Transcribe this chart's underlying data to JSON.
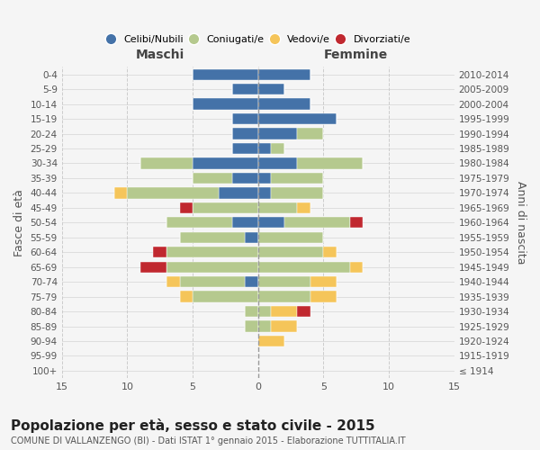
{
  "age_groups": [
    "100+",
    "95-99",
    "90-94",
    "85-89",
    "80-84",
    "75-79",
    "70-74",
    "65-69",
    "60-64",
    "55-59",
    "50-54",
    "45-49",
    "40-44",
    "35-39",
    "30-34",
    "25-29",
    "20-24",
    "15-19",
    "10-14",
    "5-9",
    "0-4"
  ],
  "birth_years": [
    "≤ 1914",
    "1915-1919",
    "1920-1924",
    "1925-1929",
    "1930-1934",
    "1935-1939",
    "1940-1944",
    "1945-1949",
    "1950-1954",
    "1955-1959",
    "1960-1964",
    "1965-1969",
    "1970-1974",
    "1975-1979",
    "1980-1984",
    "1985-1989",
    "1990-1994",
    "1995-1999",
    "2000-2004",
    "2005-2009",
    "2010-2014"
  ],
  "males": {
    "celibi": [
      0,
      0,
      0,
      0,
      0,
      0,
      1,
      0,
      0,
      1,
      2,
      0,
      3,
      2,
      5,
      2,
      2,
      2,
      5,
      2,
      5
    ],
    "coniugati": [
      0,
      0,
      0,
      1,
      1,
      5,
      5,
      7,
      7,
      5,
      5,
      5,
      7,
      3,
      4,
      0,
      0,
      0,
      0,
      0,
      0
    ],
    "vedovi": [
      0,
      0,
      0,
      0,
      0,
      1,
      1,
      0,
      0,
      0,
      0,
      0,
      1,
      0,
      0,
      0,
      0,
      0,
      0,
      0,
      0
    ],
    "divorziati": [
      0,
      0,
      0,
      0,
      0,
      0,
      0,
      2,
      1,
      0,
      0,
      1,
      0,
      0,
      0,
      0,
      0,
      0,
      0,
      0,
      0
    ]
  },
  "females": {
    "nubili": [
      0,
      0,
      0,
      0,
      0,
      0,
      0,
      0,
      0,
      0,
      2,
      0,
      1,
      1,
      3,
      1,
      3,
      6,
      4,
      2,
      4
    ],
    "coniugate": [
      0,
      0,
      0,
      1,
      1,
      4,
      4,
      7,
      5,
      5,
      5,
      3,
      4,
      4,
      5,
      1,
      2,
      0,
      0,
      0,
      0
    ],
    "vedove": [
      0,
      0,
      2,
      2,
      2,
      2,
      2,
      1,
      1,
      0,
      0,
      1,
      0,
      0,
      0,
      0,
      0,
      0,
      0,
      0,
      0
    ],
    "divorziate": [
      0,
      0,
      0,
      0,
      1,
      0,
      0,
      0,
      0,
      0,
      1,
      0,
      0,
      0,
      0,
      0,
      0,
      0,
      0,
      0,
      0
    ]
  },
  "colors": {
    "celibi_nubili": "#4472a8",
    "coniugati": "#b5c98e",
    "vedovi": "#f5c55a",
    "divorziati": "#c0282f"
  },
  "xlim": 15,
  "title": "Popolazione per età, sesso e stato civile - 2015",
  "subtitle": "COMUNE DI VALLANZENGO (BI) - Dati ISTAT 1° gennaio 2015 - Elaborazione TUTTITALIA.IT",
  "ylabel_left": "Fasce di età",
  "ylabel_right": "Anni di nascita",
  "xlabel_left": "Maschi",
  "xlabel_right": "Femmine",
  "bg_color": "#f5f5f5",
  "grid_color": "#cccccc",
  "legend_labels": [
    "Celibi/Nubili",
    "Coniugati/e",
    "Vedovi/e",
    "Divorziati/e"
  ]
}
